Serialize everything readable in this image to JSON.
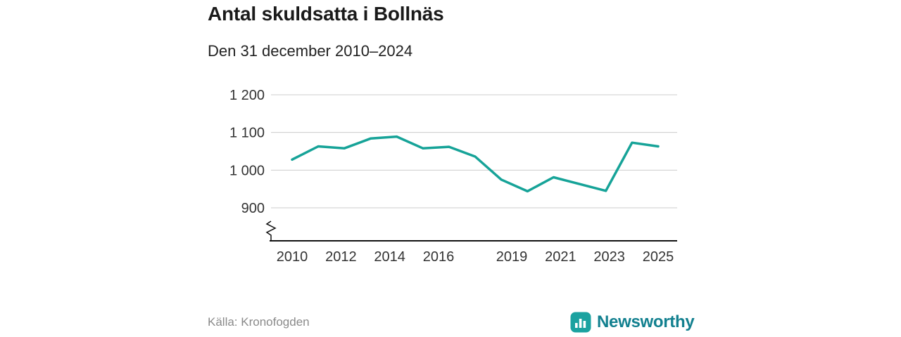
{
  "header": {
    "title": "Antal skuldsatta i Bollnäs",
    "subtitle": "Den 31 december 2010–2024"
  },
  "footer": {
    "source": "Källa: Kronofogden"
  },
  "brand": {
    "name": "Newsworthy",
    "icon": "bar-chart-icon",
    "icon_color": "#1ba2a0",
    "text_color": "#12808f"
  },
  "chart_data": {
    "type": "line",
    "title": "Antal skuldsatta i Bollnäs",
    "subtitle": "Den 31 december 2010–2024",
    "x": [
      2010,
      2011,
      2012,
      2013,
      2014,
      2015,
      2016,
      2017,
      2018,
      2019,
      2020,
      2021,
      2022,
      2023,
      2024
    ],
    "values": [
      1028,
      1063,
      1058,
      1084,
      1089,
      1058,
      1062,
      1036,
      975,
      944,
      981,
      963,
      945,
      1073,
      1063
    ],
    "series_name": "Antal skuldsatta",
    "line_color": "#16a398",
    "grid_color": "#cccccc",
    "axis_color": "#111111",
    "yticks": [
      900,
      1000,
      1100,
      1200
    ],
    "ytick_labels": [
      "900",
      "1 000",
      "1 100",
      "1 200"
    ],
    "xticks": [
      2010,
      2012,
      2014,
      2016,
      2019,
      2021,
      2023,
      2025
    ],
    "xtick_labels": [
      "2010",
      "2012",
      "2014",
      "2016",
      "2019",
      "2021",
      "2023",
      "2025"
    ],
    "ylim": [
      900,
      1200
    ],
    "axis_break": true,
    "grid": "horizontal",
    "legend": "none",
    "source": "Källa: Kronofogden"
  }
}
